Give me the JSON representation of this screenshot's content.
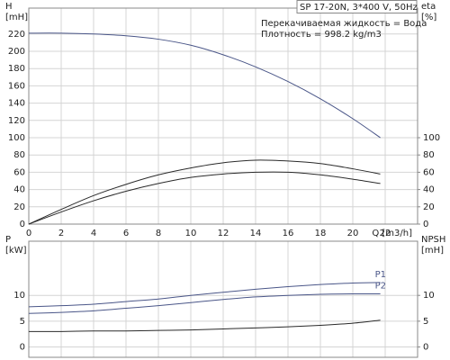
{
  "chart_data": [
    {
      "type": "line",
      "title": "SP 17-20N, 3*400 V, 50Hz",
      "annotations": [
        "Перекачиваемая жидкость = Вода",
        "Плотность = 998.2 kg/m3"
      ],
      "y_label": [
        "H",
        "[mH]"
      ],
      "y2_label": [
        "eta",
        "[%]"
      ],
      "x_label": "Q [m3/h]",
      "x": [
        0,
        2,
        4,
        6,
        8,
        10,
        12,
        14,
        16,
        18,
        20,
        21.7
      ],
      "series": [
        {
          "color": "#4a5688",
          "values": [
            221,
            221,
            220,
            218,
            214,
            207,
            196,
            182,
            165,
            145,
            122,
            100
          ]
        },
        {
          "color": "#2a2a2a",
          "axis": "y2",
          "values": [
            0,
            17,
            33,
            46,
            57,
            65,
            71,
            74,
            73,
            70,
            64,
            58
          ]
        },
        {
          "color": "#2a2a2a",
          "axis": "y2",
          "values": [
            0,
            14,
            27,
            38,
            47,
            54,
            58,
            60,
            60,
            57,
            52,
            47
          ]
        }
      ],
      "xlim": [
        0,
        24
      ],
      "xticks": [
        0,
        2,
        4,
        6,
        8,
        10,
        12,
        14,
        16,
        18,
        20,
        22
      ],
      "ylim": [
        0,
        250
      ],
      "yticks": [
        0,
        20,
        40,
        60,
        80,
        100,
        120,
        140,
        160,
        180,
        200,
        220
      ],
      "y2lim": [
        0,
        250
      ],
      "y2ticks": [
        0,
        20,
        40,
        60,
        80,
        100
      ],
      "grid": true
    },
    {
      "type": "line",
      "y_label": [
        "P",
        "[kW]"
      ],
      "y2_label": [
        "NPSH",
        "[mH]"
      ],
      "x": [
        0,
        2,
        4,
        6,
        8,
        10,
        12,
        14,
        16,
        18,
        20,
        21.7
      ],
      "series": [
        {
          "name": "P1",
          "color": "#4a5688",
          "values": [
            7.8,
            8.0,
            8.3,
            8.8,
            9.3,
            10.0,
            10.6,
            11.2,
            11.7,
            12.1,
            12.4,
            12.5
          ]
        },
        {
          "name": "P2",
          "color": "#4a5688",
          "values": [
            6.5,
            6.7,
            7.0,
            7.5,
            8.0,
            8.6,
            9.2,
            9.7,
            10.0,
            10.2,
            10.3,
            10.3
          ]
        },
        {
          "color": "#2a2a2a",
          "axis": "y2",
          "values": [
            3.0,
            3.0,
            3.1,
            3.1,
            3.2,
            3.3,
            3.5,
            3.7,
            3.9,
            4.2,
            4.6,
            5.2
          ]
        }
      ],
      "xlim": [
        0,
        24
      ],
      "xticks": [
        0,
        2,
        4,
        6,
        8,
        10,
        12,
        14,
        16,
        18,
        20,
        22
      ],
      "ylim": [
        -2,
        20.5
      ],
      "yticks": [
        0,
        5,
        10
      ],
      "y2lim": [
        -2,
        20.5
      ],
      "y2ticks": [
        0,
        5,
        10
      ],
      "grid": true
    }
  ]
}
